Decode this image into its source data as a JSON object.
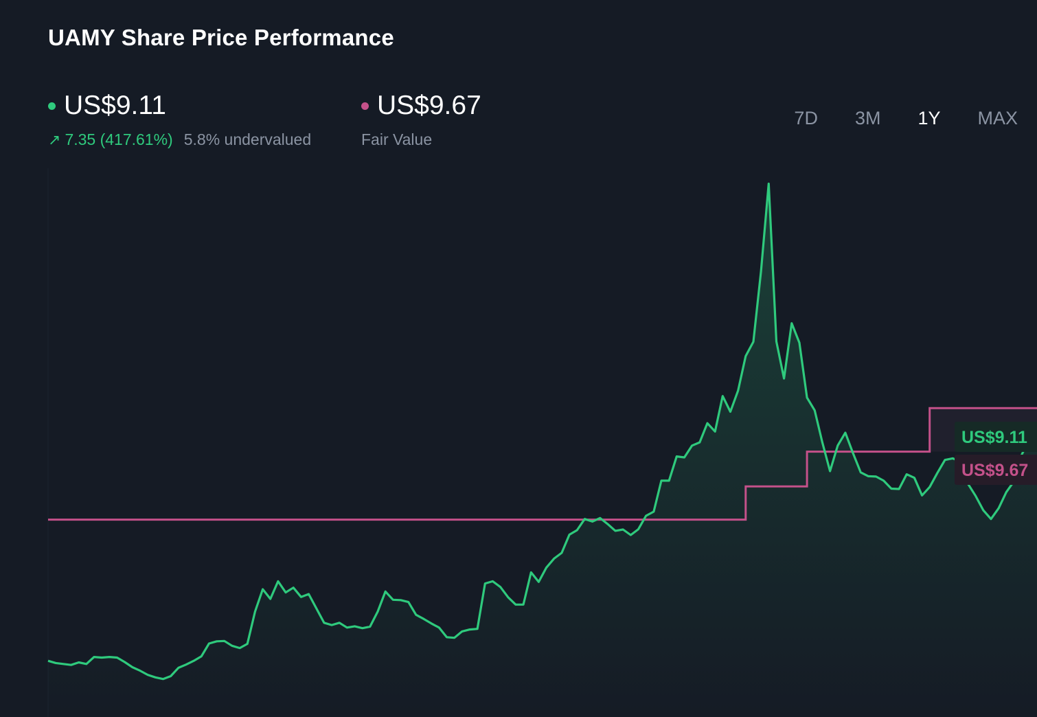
{
  "header": {
    "title": "UAMY Share Price Performance"
  },
  "price": {
    "value": "US$9.11",
    "change": "7.35 (417.61%)",
    "note": "5.8% undervalued",
    "color": "#2fca7d"
  },
  "fair_value": {
    "value": "US$9.67",
    "label": "Fair Value",
    "color": "#c4518a"
  },
  "tabs": [
    {
      "label": "7D",
      "active": false
    },
    {
      "label": "3M",
      "active": false
    },
    {
      "label": "1Y",
      "active": true
    },
    {
      "label": "MAX",
      "active": false
    }
  ],
  "chart_data": {
    "type": "line",
    "title": "UAMY Share Price Performance",
    "xlabel": "",
    "ylabel": "",
    "grid": false,
    "ylim": [
      0.4,
      17.2
    ],
    "series": [
      {
        "name": "Share Price",
        "color": "#2fca7d",
        "values": [
          1.76,
          1.69,
          1.66,
          1.63,
          1.71,
          1.66,
          1.88,
          1.86,
          1.88,
          1.86,
          1.72,
          1.56,
          1.45,
          1.32,
          1.24,
          1.19,
          1.28,
          1.54,
          1.64,
          1.76,
          1.9,
          2.3,
          2.37,
          2.38,
          2.23,
          2.16,
          2.29,
          3.3,
          4.0,
          3.7,
          4.25,
          3.9,
          4.05,
          3.76,
          3.85,
          3.4,
          2.95,
          2.88,
          2.95,
          2.8,
          2.84,
          2.78,
          2.83,
          3.3,
          3.93,
          3.67,
          3.66,
          3.6,
          3.2,
          3.07,
          2.93,
          2.8,
          2.5,
          2.48,
          2.68,
          2.74,
          2.76,
          4.18,
          4.25,
          4.07,
          3.75,
          3.52,
          3.52,
          4.53,
          4.23,
          4.68,
          4.96,
          5.14,
          5.71,
          5.85,
          6.2,
          6.12,
          6.23,
          6.04,
          5.83,
          5.87,
          5.7,
          5.88,
          6.3,
          6.43,
          7.4,
          7.4,
          8.16,
          8.13,
          8.5,
          8.6,
          9.2,
          8.94,
          10.05,
          9.56,
          10.22,
          11.3,
          11.75,
          13.95,
          16.7,
          11.76,
          10.6,
          12.33,
          11.72,
          10.0,
          9.6,
          8.6,
          7.7,
          8.5,
          8.9,
          8.26,
          7.66,
          7.54,
          7.53,
          7.4,
          7.15,
          7.14,
          7.6,
          7.49,
          6.94,
          7.2,
          7.64,
          8.05,
          8.1,
          8.0,
          7.3,
          6.92,
          6.47,
          6.2,
          6.54,
          7.04,
          7.38,
          8.21,
          8.7,
          9.11
        ]
      },
      {
        "name": "Fair Value",
        "color": "#c4518a",
        "values": [
          6.18,
          6.18,
          6.18,
          6.18,
          6.18,
          6.18,
          6.18,
          6.18,
          6.18,
          6.18,
          6.18,
          6.18,
          6.18,
          6.18,
          6.18,
          6.18,
          6.18,
          6.18,
          6.18,
          6.18,
          6.18,
          6.18,
          6.18,
          6.18,
          6.18,
          6.18,
          6.18,
          6.18,
          6.18,
          6.18,
          6.18,
          6.18,
          6.18,
          6.18,
          6.18,
          6.18,
          6.18,
          6.18,
          6.18,
          6.18,
          6.18,
          6.18,
          6.18,
          6.18,
          6.18,
          6.18,
          6.18,
          6.18,
          6.18,
          6.18,
          6.18,
          6.18,
          6.18,
          6.18,
          6.18,
          6.18,
          6.18,
          6.18,
          6.18,
          6.18,
          6.18,
          6.18,
          6.18,
          6.18,
          6.18,
          6.18,
          6.18,
          6.18,
          6.18,
          6.18,
          6.18,
          6.18,
          6.18,
          6.18,
          6.18,
          6.18,
          6.18,
          6.18,
          6.18,
          6.18,
          6.18,
          6.18,
          6.18,
          6.18,
          6.18,
          6.18,
          6.18,
          6.18,
          6.18,
          6.18,
          6.18,
          7.22,
          7.22,
          7.22,
          7.22,
          7.22,
          7.22,
          7.22,
          7.22,
          8.31,
          8.31,
          8.31,
          8.31,
          8.31,
          8.31,
          8.31,
          8.31,
          8.31,
          8.31,
          8.31,
          8.31,
          8.31,
          8.31,
          8.31,
          8.31,
          9.67,
          9.67,
          9.67,
          9.67,
          9.67,
          9.67,
          9.67,
          9.67,
          9.67,
          9.67,
          9.67,
          9.67,
          9.67,
          9.67,
          9.67,
          9.67
        ]
      }
    ],
    "end_labels": [
      "US$9.11",
      "US$9.67"
    ]
  }
}
